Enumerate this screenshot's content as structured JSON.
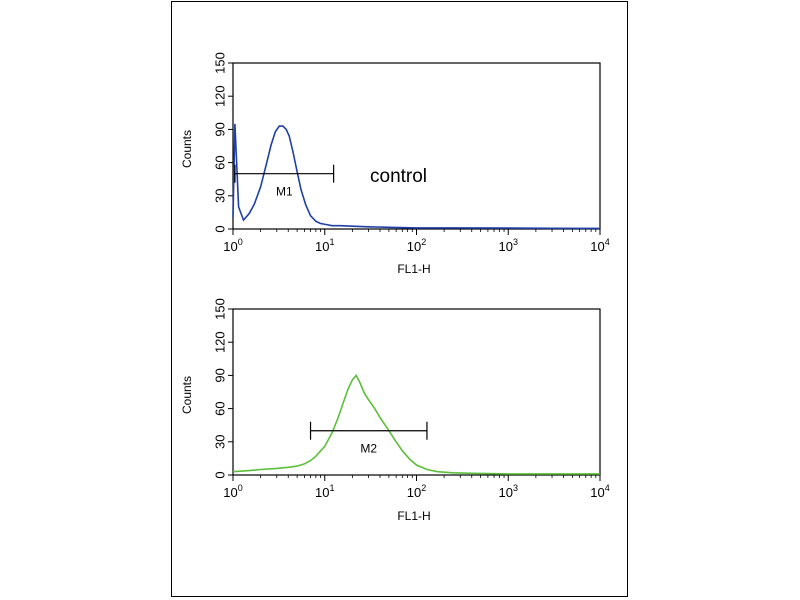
{
  "chart_data": [
    {
      "type": "histogram",
      "xscale": "log",
      "xlim": [
        1,
        10000
      ],
      "ylim": [
        0,
        150
      ],
      "xlabel": "FL1-H",
      "ylabel": "Counts",
      "xticks": [
        {
          "base": "10",
          "exp": "0"
        },
        {
          "base": "10",
          "exp": "1"
        },
        {
          "base": "10",
          "exp": "2"
        },
        {
          "base": "10",
          "exp": "3"
        },
        {
          "base": "10",
          "exp": "4"
        }
      ],
      "yticks": [
        "0",
        "30",
        "60",
        "90",
        "120",
        "150"
      ],
      "annotation": "control",
      "color": "#1f3fa6",
      "gate": {
        "label": "M1",
        "x_start": 1.05,
        "x_end": 12.5,
        "y": 50
      },
      "series": [
        {
          "x": [
            1,
            1.05,
            1.15,
            1.3,
            1.5,
            1.7,
            2.0,
            2.3,
            2.6,
            2.9,
            3.2,
            3.5,
            3.8,
            4.1,
            4.5,
            5.0,
            5.5,
            6.2,
            7.0,
            8.0,
            9.0,
            10.5,
            12,
            15,
            20,
            30,
            50,
            100,
            300,
            1000,
            3000,
            10000
          ],
          "y": [
            10,
            95,
            20,
            8,
            14,
            22,
            38,
            58,
            76,
            88,
            93,
            93,
            90,
            84,
            70,
            52,
            36,
            22,
            12,
            7,
            5,
            4,
            3,
            3,
            2.5,
            2,
            1.5,
            1,
            1,
            0.8,
            0.6,
            0.5
          ]
        }
      ]
    },
    {
      "type": "histogram",
      "xscale": "log",
      "xlim": [
        1,
        10000
      ],
      "ylim": [
        0,
        150
      ],
      "xlabel": "FL1-H",
      "ylabel": "Counts",
      "xticks": [
        {
          "base": "10",
          "exp": "0"
        },
        {
          "base": "10",
          "exp": "1"
        },
        {
          "base": "10",
          "exp": "2"
        },
        {
          "base": "10",
          "exp": "3"
        },
        {
          "base": "10",
          "exp": "4"
        }
      ],
      "yticks": [
        "0",
        "30",
        "60",
        "90",
        "120",
        "150"
      ],
      "color": "#5bbf3a",
      "gate": {
        "label": "M2",
        "x_start": 7.0,
        "x_end": 130,
        "y": 40
      },
      "series": [
        {
          "x": [
            1,
            1.5,
            2,
            3,
            4,
            5,
            6,
            7,
            8,
            10,
            12,
            14,
            16,
            18,
            20,
            22,
            24,
            27,
            30,
            35,
            40,
            50,
            60,
            70,
            85,
            100,
            130,
            170,
            250,
            400,
            1000,
            3000,
            10000
          ],
          "y": [
            3,
            4,
            5,
            6,
            7,
            8,
            10,
            13,
            17,
            26,
            38,
            52,
            66,
            78,
            86,
            90,
            84,
            74,
            68,
            60,
            52,
            40,
            30,
            22,
            14,
            9,
            5,
            3,
            2,
            1.5,
            1,
            1,
            1
          ]
        }
      ]
    }
  ]
}
